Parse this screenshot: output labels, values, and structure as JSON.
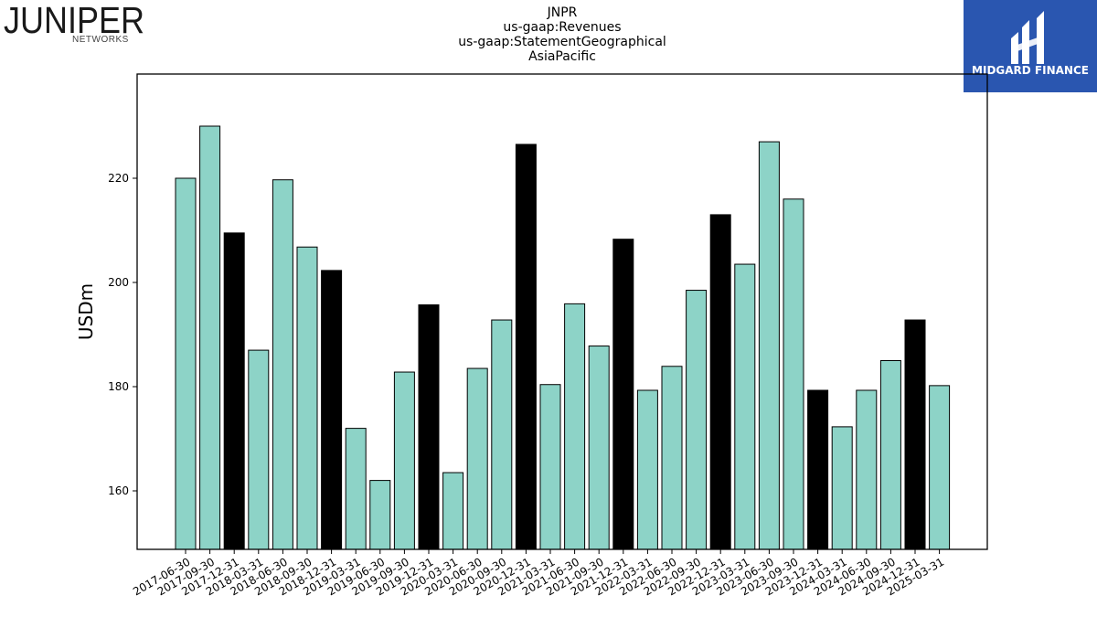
{
  "logos": {
    "left": {
      "name": "JUNIPER",
      "sub": "NETWORKS"
    },
    "right": {
      "name": "MIDGARD FINANCE",
      "color": "#2a56b0"
    }
  },
  "chart_data": {
    "type": "bar",
    "title_lines": [
      "JNPR",
      "us-gaap:Revenues",
      "us-gaap:StatementGeographical",
      "AsiaPacific"
    ],
    "ylabel": "USDm",
    "xlabel": "",
    "ylim": [
      148.9,
      240
    ],
    "yticks": [
      160,
      180,
      200,
      220
    ],
    "grid": false,
    "colors": {
      "quarter": "#8dd3c7",
      "year_end": "#000000"
    },
    "categories": [
      "2017-06-30",
      "2017-09-30",
      "2017-12-31",
      "2018-03-31",
      "2018-06-30",
      "2018-09-30",
      "2018-12-31",
      "2019-03-31",
      "2019-06-30",
      "2019-09-30",
      "2019-12-31",
      "2020-03-31",
      "2020-06-30",
      "2020-09-30",
      "2020-12-31",
      "2021-03-31",
      "2021-06-30",
      "2021-09-30",
      "2021-12-31",
      "2022-03-31",
      "2022-06-30",
      "2022-09-30",
      "2022-12-31",
      "2023-03-31",
      "2023-06-30",
      "2023-09-30",
      "2023-12-31",
      "2024-03-31",
      "2024-06-30",
      "2024-09-30",
      "2024-12-31",
      "2025-03-31"
    ],
    "values": [
      220,
      230,
      209.5,
      187,
      219.7,
      206.8,
      202.3,
      172,
      162,
      182.8,
      195.7,
      163.5,
      183.5,
      192.8,
      226.5,
      180.4,
      195.9,
      187.8,
      208.3,
      179.3,
      183.9,
      198.5,
      213,
      203.5,
      227,
      216,
      179.3,
      172.3,
      179.3,
      185,
      192.8,
      180.2
    ]
  }
}
